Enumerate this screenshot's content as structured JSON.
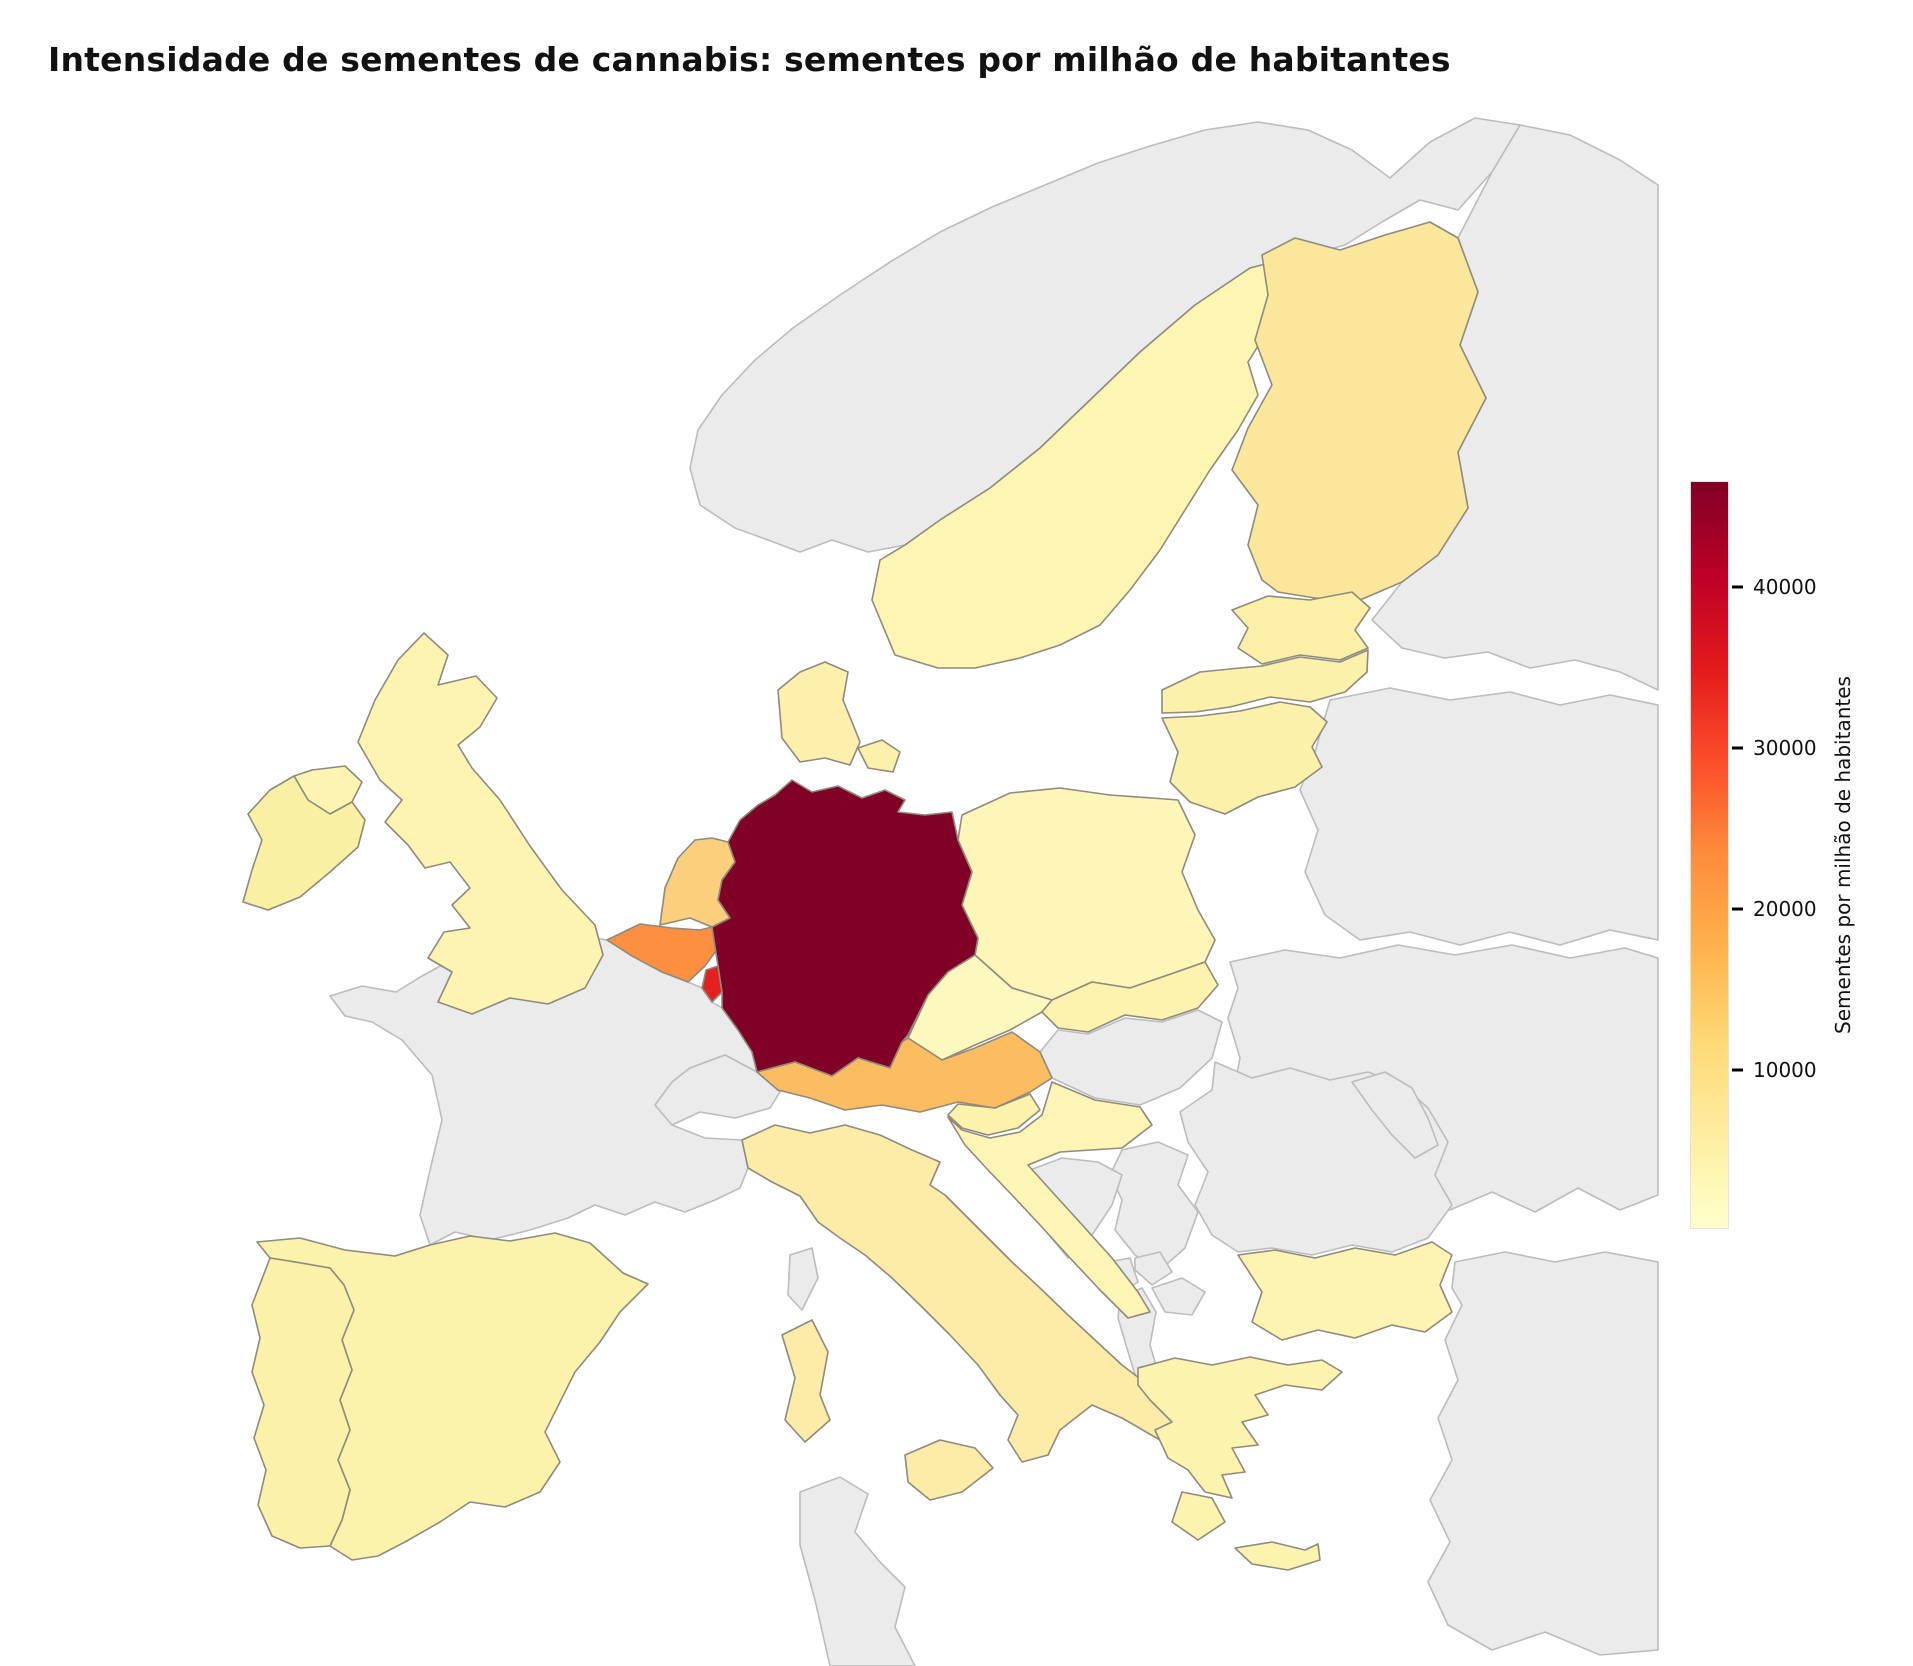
{
  "title": "Intensidade de sementes de cannabis: sementes por milhão de habitantes",
  "colorbar": {
    "label": "Sementes por milhão de habitantes",
    "tick_labels": [
      "10000",
      "20000",
      "30000",
      "40000"
    ]
  },
  "chart_data": {
    "type": "heatmap",
    "subtype": "choropleth_map",
    "region": "Europe",
    "title": "Intensidade de sementes de cannabis: sementes por milhão de habitantes",
    "colorbar_label": "Sementes por milhão de habitantes",
    "color_scale": {
      "name": "YlOrRd",
      "palette": [
        "#ffffcc",
        "#ffeda0",
        "#fed976",
        "#feb24c",
        "#fd8d3c",
        "#fc4e2a",
        "#e31a1c",
        "#bd0026",
        "#800026"
      ],
      "min": 200,
      "max": 46500,
      "ticks": [
        10000,
        20000,
        30000,
        40000
      ],
      "no_data_color": "#ebebeb",
      "background_color": "#ffffff"
    },
    "countries": [
      {
        "id": "germany",
        "name": "Germany",
        "value_estimate": 46500,
        "fill": "#800026"
      },
      {
        "id": "luxembourg",
        "name": "Luxembourg",
        "value_estimate": 35000,
        "fill": "#e4211e"
      },
      {
        "id": "belgium",
        "name": "Belgium",
        "value_estimate": 21000,
        "fill": "#fd8f40"
      },
      {
        "id": "austria",
        "name": "Austria",
        "value_estimate": 14000,
        "fill": "#fcbd60"
      },
      {
        "id": "netherlands",
        "name": "Netherlands",
        "value_estimate": 11500,
        "fill": "#fccf7c"
      },
      {
        "id": "finland",
        "name": "Finland",
        "value_estimate": 6500,
        "fill": "#fbe79c"
      },
      {
        "id": "italy",
        "name": "Italy",
        "value_estimate": 5500,
        "fill": "#fceca8"
      },
      {
        "id": "denmark",
        "name": "Denmark",
        "value_estimate": 4000,
        "fill": "#fdf0ac"
      },
      {
        "id": "estonia",
        "name": "Estonia",
        "value_estimate": 3800,
        "fill": "#fbf0a6"
      },
      {
        "id": "ireland",
        "name": "Ireland",
        "value_estimate": 3500,
        "fill": "#faf0a4"
      },
      {
        "id": "latvia",
        "name": "Latvia",
        "value_estimate": 3200,
        "fill": "#fbf1aa"
      },
      {
        "id": "lithuania",
        "name": "Lithuania",
        "value_estimate": 3200,
        "fill": "#fbf1aa"
      },
      {
        "id": "slovenia",
        "name": "Slovenia",
        "value_estimate": 3000,
        "fill": "#fcf2ab"
      },
      {
        "id": "portugal",
        "name": "Portugal",
        "value_estimate": 2800,
        "fill": "#fbf1a8"
      },
      {
        "id": "spain",
        "name": "Spain",
        "value_estimate": 2600,
        "fill": "#fbf2ac"
      },
      {
        "id": "slovakia",
        "name": "Slovakia",
        "value_estimate": 2600,
        "fill": "#fdf3ae"
      },
      {
        "id": "greece",
        "name": "Greece",
        "value_estimate": 2500,
        "fill": "#fcf3ae"
      },
      {
        "id": "uk",
        "name": "United Kingdom",
        "value_estimate": 2400,
        "fill": "#fcf4b0"
      },
      {
        "id": "sweden",
        "name": "Sweden",
        "value_estimate": 2000,
        "fill": "#fdf5b2"
      },
      {
        "id": "bulgaria",
        "name": "Bulgaria",
        "value_estimate": 2000,
        "fill": "#fdf4b2"
      },
      {
        "id": "croatia",
        "name": "Croatia",
        "value_estimate": 1800,
        "fill": "#fdf5b5"
      },
      {
        "id": "poland",
        "name": "Poland",
        "value_estimate": 1500,
        "fill": "#fdf6b8"
      },
      {
        "id": "czechia",
        "name": "Czechia",
        "value_estimate": 1000,
        "fill": "#fdf8bd"
      },
      {
        "id": "norway",
        "name": "Norway",
        "value_estimate": null,
        "fill": "#ebebeb"
      },
      {
        "id": "france",
        "name": "France",
        "value_estimate": null,
        "fill": "#ebebeb"
      },
      {
        "id": "corsica",
        "name": "Corsica (France)",
        "value_estimate": null,
        "fill": "#ebebeb"
      },
      {
        "id": "switzerland",
        "name": "Switzerland",
        "value_estimate": null,
        "fill": "#ebebeb"
      },
      {
        "id": "hungary",
        "name": "Hungary",
        "value_estimate": null,
        "fill": "#ebebeb"
      },
      {
        "id": "romania",
        "name": "Romania",
        "value_estimate": null,
        "fill": "#ebebeb"
      },
      {
        "id": "moldova",
        "name": "Moldova",
        "value_estimate": null,
        "fill": "#ebebeb"
      },
      {
        "id": "ukraine",
        "name": "Ukraine",
        "value_estimate": null,
        "fill": "#ebebeb"
      },
      {
        "id": "belarus",
        "name": "Belarus",
        "value_estimate": null,
        "fill": "#ebebeb"
      },
      {
        "id": "russia",
        "name": "Russia",
        "value_estimate": null,
        "fill": "#ebebeb"
      },
      {
        "id": "serbia",
        "name": "Serbia",
        "value_estimate": null,
        "fill": "#ebebeb"
      },
      {
        "id": "bosnia",
        "name": "Bosnia and Herzegovina",
        "value_estimate": null,
        "fill": "#ebebeb"
      },
      {
        "id": "montenegro",
        "name": "Montenegro",
        "value_estimate": null,
        "fill": "#ebebeb"
      },
      {
        "id": "kosovo",
        "name": "Kosovo",
        "value_estimate": null,
        "fill": "#ebebeb"
      },
      {
        "id": "albania",
        "name": "Albania",
        "value_estimate": null,
        "fill": "#ebebeb"
      },
      {
        "id": "macedonia",
        "name": "North Macedonia",
        "value_estimate": null,
        "fill": "#ebebeb"
      },
      {
        "id": "turkey",
        "name": "Turkey",
        "value_estimate": null,
        "fill": "#ebebeb"
      },
      {
        "id": "tunisia",
        "name": "Tunisia",
        "value_estimate": null,
        "fill": "#ebebeb"
      }
    ]
  }
}
